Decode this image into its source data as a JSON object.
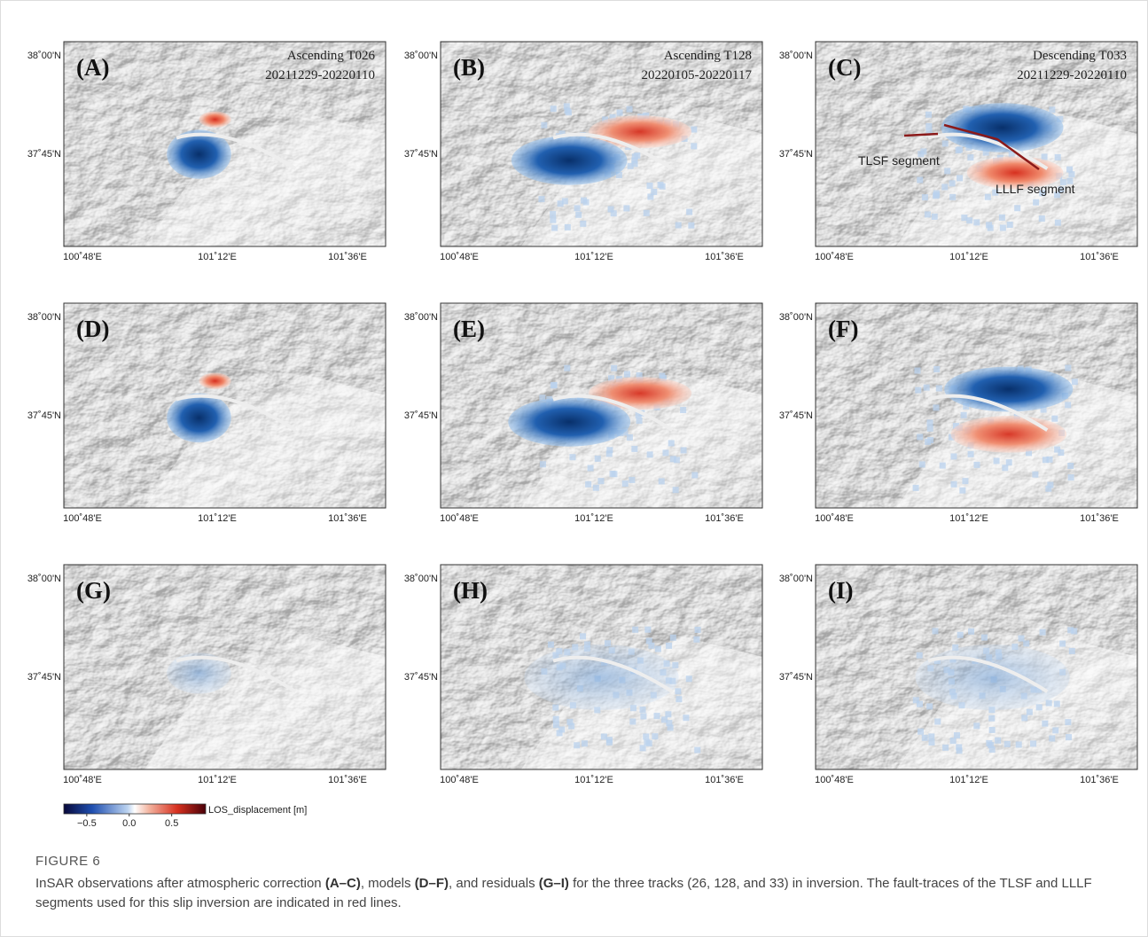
{
  "figure": {
    "panels": [
      {
        "label": "(A)",
        "title_lines": [
          "Ascending T026",
          "20211229-20220110"
        ]
      },
      {
        "label": "(B)",
        "title_lines": [
          "Ascending T128",
          "20220105-20220117"
        ]
      },
      {
        "label": "(C)",
        "title_lines": [
          "Descending T033",
          "20211229-20220110"
        ],
        "annotations": [
          "TLSF segment",
          "LLLF segment"
        ]
      },
      {
        "label": "(D)"
      },
      {
        "label": "(E)"
      },
      {
        "label": "(F)"
      },
      {
        "label": "(G)"
      },
      {
        "label": "(H)"
      },
      {
        "label": "(I)"
      }
    ],
    "y_labels": [
      "38˚00'N",
      "37˚45'N"
    ],
    "x_labels": [
      "100˚48'E",
      "101˚12'E",
      "101˚36'E"
    ],
    "colorbar": {
      "label": "LOS_displacement [m]",
      "lim": [
        -0.77,
        0.9
      ],
      "ticks": [
        {
          "value": -0.5,
          "label": "−0.5"
        },
        {
          "value": 0,
          "label": "0.0"
        },
        {
          "value": 0.5,
          "label": "0.5"
        }
      ]
    },
    "caption": {
      "label": "FIGURE 6",
      "parts": [
        {
          "text": "InSAR observations after atmospheric correction ",
          "bold": false
        },
        {
          "text": "(A–C)",
          "bold": true
        },
        {
          "text": ", models ",
          "bold": false
        },
        {
          "text": "(D–F)",
          "bold": true
        },
        {
          "text": ", and residuals ",
          "bold": false
        },
        {
          "text": "(G–I)",
          "bold": true
        },
        {
          "text": " for the three tracks (26, 128, and 33) in inversion. The fault-traces of the TLSF and LLLF segments used for this slip inversion are indicated in red lines.",
          "bold": false
        }
      ]
    }
  }
}
